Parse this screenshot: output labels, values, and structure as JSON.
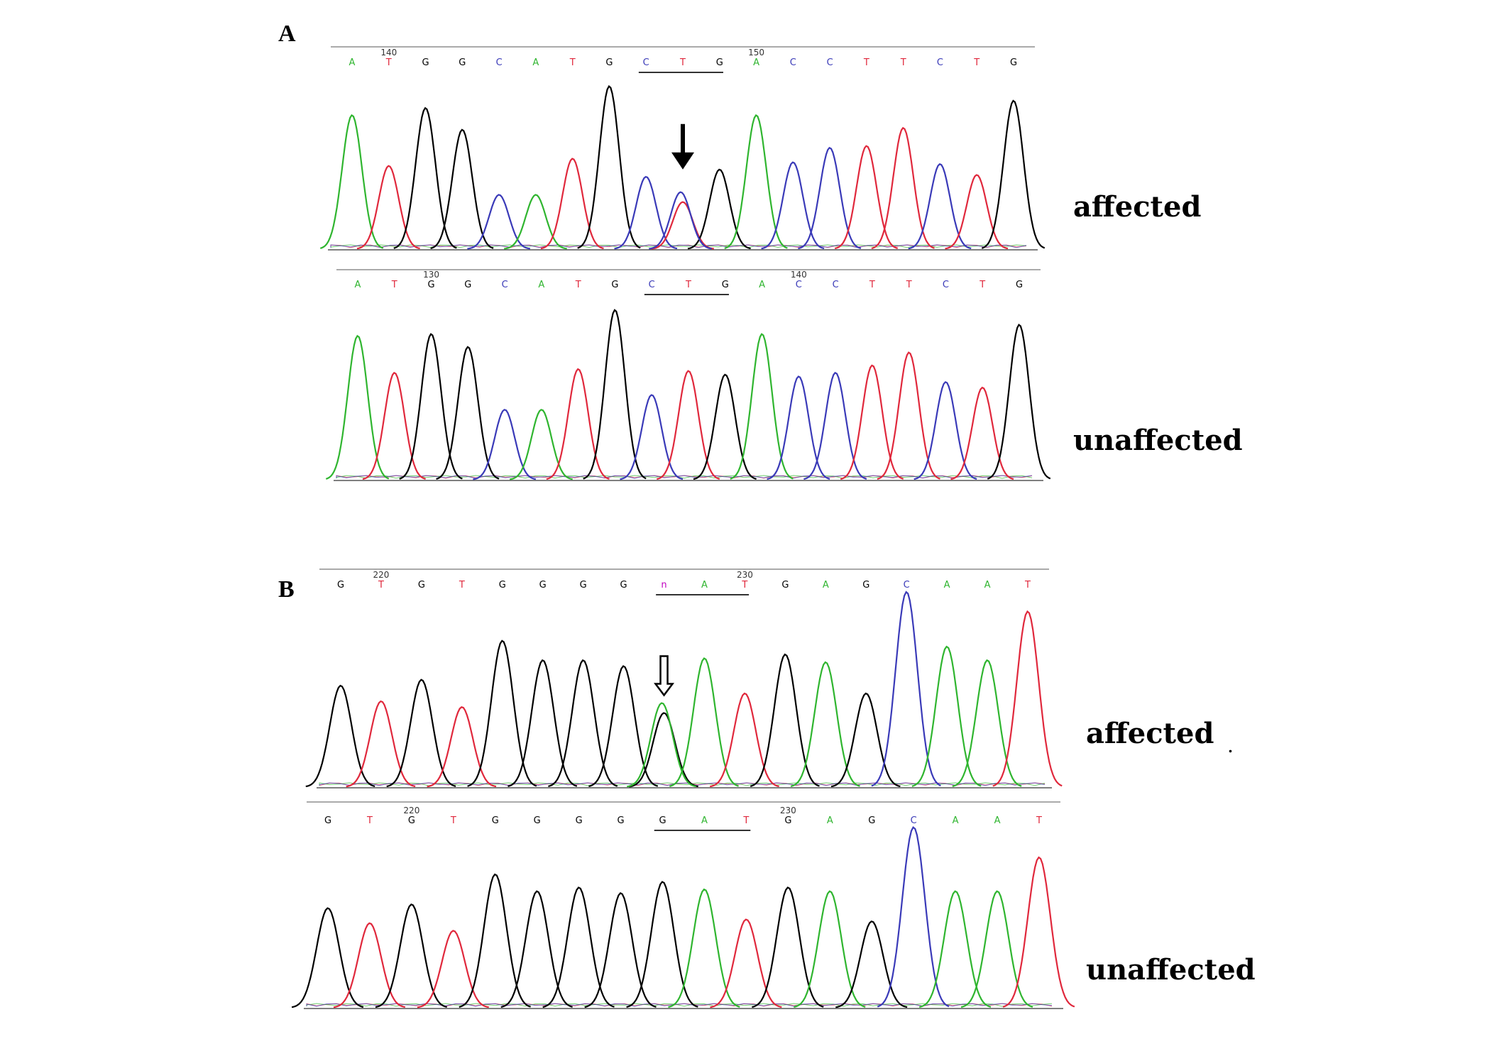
{
  "colors": {
    "A": "#2fb52f",
    "C": "#3a3ab8",
    "G": "#000000",
    "T": "#e0283c",
    "n": "#c000c0",
    "frame": "#aaaaaa"
  },
  "chart_data": [
    {
      "type": "line",
      "panel": "A",
      "status": "affected",
      "bases": [
        "A",
        "T",
        "G",
        "G",
        "C",
        "A",
        "T",
        "G",
        "C",
        "T",
        "G",
        "A",
        "C",
        "C",
        "T",
        "T",
        "C",
        "T",
        "G"
      ],
      "positions": [
        {
          "index": 1,
          "label": "140"
        },
        {
          "index": 11,
          "label": "150"
        }
      ],
      "peak_heights": [
        0.74,
        0.46,
        0.78,
        0.66,
        0.3,
        0.3,
        0.5,
        0.9,
        0.4,
        0.26,
        0.44,
        0.74,
        0.48,
        0.56,
        0.57,
        0.67,
        0.47,
        0.41,
        0.82
      ],
      "overlap_peaks": [
        {
          "index": 9,
          "base": "C",
          "height": 0.22
        }
      ],
      "underlined_codon": [
        8,
        10
      ],
      "arrow": {
        "index": 9,
        "style": "solid"
      }
    },
    {
      "type": "line",
      "panel": "A",
      "status": "unaffected",
      "bases": [
        "A",
        "T",
        "G",
        "G",
        "C",
        "A",
        "T",
        "G",
        "C",
        "T",
        "G",
        "A",
        "C",
        "C",
        "T",
        "T",
        "C",
        "T",
        "G"
      ],
      "positions": [
        {
          "index": 2,
          "label": "130"
        },
        {
          "index": 12,
          "label": "140"
        }
      ],
      "peak_heights": [
        0.78,
        0.58,
        0.79,
        0.72,
        0.38,
        0.38,
        0.6,
        0.92,
        0.46,
        0.59,
        0.57,
        0.79,
        0.56,
        0.58,
        0.62,
        0.69,
        0.53,
        0.5,
        0.84
      ],
      "overlap_peaks": [],
      "underlined_codon": [
        8,
        10
      ],
      "arrow": null
    },
    {
      "type": "line",
      "panel": "B",
      "status": "affected",
      "bases": [
        "G",
        "T",
        "G",
        "T",
        "G",
        "G",
        "G",
        "G",
        "n",
        "A",
        "T",
        "G",
        "A",
        "G",
        "C",
        "A",
        "A",
        "T"
      ],
      "positions": [
        {
          "index": 1,
          "label": "220"
        },
        {
          "index": 10,
          "label": "230"
        }
      ],
      "peak_heights": [
        0.52,
        0.44,
        0.55,
        0.41,
        0.75,
        0.65,
        0.65,
        0.62,
        0.38,
        0.66,
        0.48,
        0.68,
        0.64,
        0.48,
        1.0,
        0.72,
        0.65,
        0.9
      ],
      "overlap_peaks": [
        {
          "index": 8,
          "base": "A",
          "height": 0.38,
          "note": "overlapping G and A peaks"
        }
      ],
      "underlined_codon": [
        8,
        10
      ],
      "arrow": {
        "index": 8,
        "style": "hollow"
      }
    },
    {
      "type": "line",
      "panel": "B",
      "status": "unaffected",
      "bases": [
        "G",
        "T",
        "G",
        "T",
        "G",
        "G",
        "G",
        "G",
        "G",
        "A",
        "T",
        "G",
        "A",
        "G",
        "C",
        "A",
        "A",
        "T"
      ],
      "positions": [
        {
          "index": 2,
          "label": "220"
        },
        {
          "index": 11,
          "label": "230"
        }
      ],
      "peak_heights": [
        0.53,
        0.45,
        0.55,
        0.41,
        0.71,
        0.62,
        0.64,
        0.61,
        0.67,
        0.63,
        0.47,
        0.64,
        0.62,
        0.46,
        0.96,
        0.62,
        0.62,
        0.8
      ],
      "overlap_peaks": [],
      "underlined_codon": [
        8,
        10
      ],
      "arrow": null
    }
  ],
  "panels": {
    "A": "A",
    "B": "B"
  },
  "labels": {
    "a_affected": "affected",
    "a_unaffected": "unaffected",
    "b_affected": "affected",
    "b_unaffected": "unaffected",
    "stray_mark": "."
  }
}
